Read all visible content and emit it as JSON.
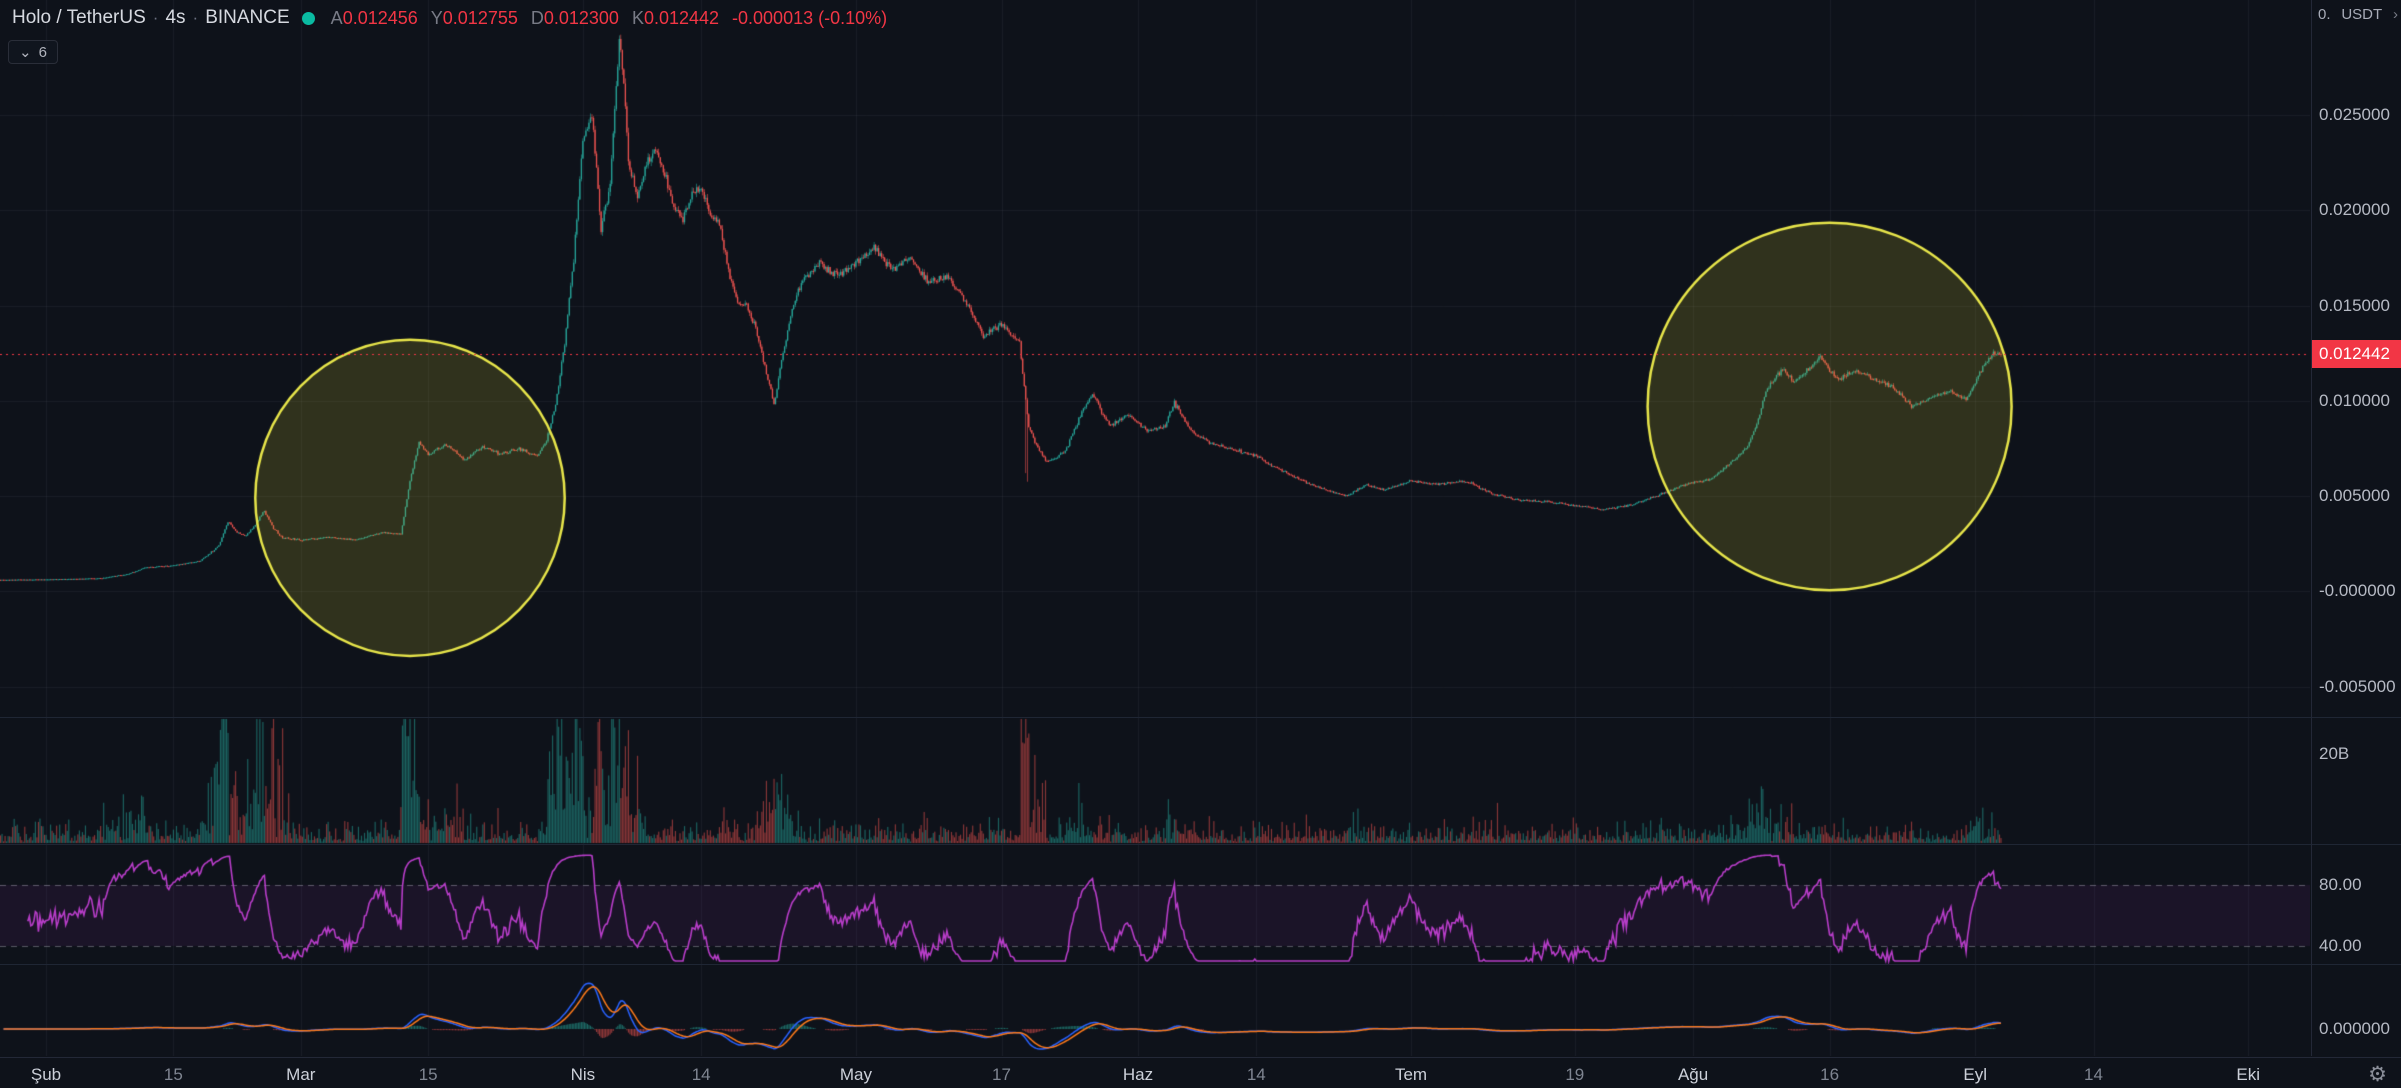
{
  "header": {
    "symbol": "Holo / TetherUS",
    "separator": "·",
    "interval": "4s",
    "exchange": "BINANCE",
    "ohlc": {
      "open_label": "A",
      "open": "0.012456",
      "high_label": "Y",
      "high": "0.012755",
      "low_label": "D",
      "low": "0.012300",
      "close_label": "K",
      "close": "0.012442",
      "change": "-0.000013 (-0.10%)"
    },
    "collapse_caret": "⌄",
    "collapse_count": "6"
  },
  "price_axis": {
    "top_fragment": "0.",
    "unit": "USDT",
    "unit_chevron": "›",
    "ticks": [
      "0.025000",
      "0.020000",
      "0.015000",
      "0.010000",
      "0.005000",
      "-0.000000",
      "-0.005000"
    ],
    "current_price": "0.012442"
  },
  "panes": {
    "volume_label": "20B",
    "rsi_upper_label": "80.00",
    "rsi_lower_label": "40.00",
    "macd_zero_label": "0.000000"
  },
  "time_axis": {
    "gear_icon": "⚙",
    "ticks": [
      {
        "label": "Şub",
        "day": 0,
        "major": true
      },
      {
        "label": "15",
        "day": 14,
        "major": false
      },
      {
        "label": "Mar",
        "day": 28,
        "major": true
      },
      {
        "label": "15",
        "day": 42,
        "major": false
      },
      {
        "label": "Nis",
        "day": 59,
        "major": true
      },
      {
        "label": "14",
        "day": 72,
        "major": false
      },
      {
        "label": "May",
        "day": 89,
        "major": true
      },
      {
        "label": "17",
        "day": 105,
        "major": false
      },
      {
        "label": "Haz",
        "day": 120,
        "major": true
      },
      {
        "label": "14",
        "day": 133,
        "major": false
      },
      {
        "label": "Tem",
        "day": 150,
        "major": true
      },
      {
        "label": "19",
        "day": 168,
        "major": false
      },
      {
        "label": "Ağu",
        "day": 181,
        "major": true
      },
      {
        "label": "16",
        "day": 196,
        "major": false
      },
      {
        "label": "Eyl",
        "day": 212,
        "major": true
      },
      {
        "label": "14",
        "day": 225,
        "major": false
      },
      {
        "label": "Eki",
        "day": 242,
        "major": true
      }
    ]
  },
  "chart_data": {
    "type": "candlestick",
    "title": "Holo / TetherUS · 4s · BINANCE",
    "x_unit": "days since Feb 1",
    "timeframe": "4h",
    "grid": true,
    "y_ticks": [
      0.025,
      0.02,
      0.015,
      0.01,
      0.005,
      0,
      -0.005
    ],
    "current_price": 0.012442,
    "last_candle": {
      "open": 0.012456,
      "high": 0.012755,
      "low": 0.0123,
      "close": 0.012442,
      "change": -1.3e-05,
      "change_pct": -0.1
    },
    "price_path": [
      [
        -5,
        0.0006
      ],
      [
        0,
        0.00062
      ],
      [
        6,
        0.00068
      ],
      [
        9,
        0.0009
      ],
      [
        11,
        0.00125
      ],
      [
        14,
        0.00135
      ],
      [
        17,
        0.0016
      ],
      [
        19,
        0.0024
      ],
      [
        20,
        0.0037
      ],
      [
        21,
        0.0031
      ],
      [
        22,
        0.0029
      ],
      [
        23,
        0.0035
      ],
      [
        24,
        0.0042
      ],
      [
        25,
        0.0033
      ],
      [
        26,
        0.0028
      ],
      [
        28,
        0.0027
      ],
      [
        31,
        0.00285
      ],
      [
        34,
        0.0027
      ],
      [
        37,
        0.0031
      ],
      [
        39,
        0.003
      ],
      [
        40,
        0.0058
      ],
      [
        41,
        0.0078
      ],
      [
        42,
        0.0072
      ],
      [
        44,
        0.0077
      ],
      [
        46,
        0.0069
      ],
      [
        48,
        0.0076
      ],
      [
        50,
        0.0072
      ],
      [
        52,
        0.0075
      ],
      [
        54,
        0.0071
      ],
      [
        55,
        0.0079
      ],
      [
        56,
        0.0098
      ],
      [
        57,
        0.013
      ],
      [
        58,
        0.0175
      ],
      [
        59,
        0.0238
      ],
      [
        60,
        0.025
      ],
      [
        61,
        0.019
      ],
      [
        62,
        0.0215
      ],
      [
        63,
        0.029
      ],
      [
        63.5,
        0.0268
      ],
      [
        64,
        0.0226
      ],
      [
        65,
        0.0206
      ],
      [
        66,
        0.0224
      ],
      [
        67,
        0.0232
      ],
      [
        68,
        0.0218
      ],
      [
        69,
        0.0202
      ],
      [
        70,
        0.0196
      ],
      [
        71,
        0.0208
      ],
      [
        72,
        0.0212
      ],
      [
        73,
        0.0198
      ],
      [
        74,
        0.0194
      ],
      [
        75,
        0.0168
      ],
      [
        76,
        0.0152
      ],
      [
        77,
        0.015
      ],
      [
        78,
        0.0138
      ],
      [
        79,
        0.0118
      ],
      [
        80,
        0.0098
      ],
      [
        81,
        0.0125
      ],
      [
        82,
        0.0148
      ],
      [
        83,
        0.0162
      ],
      [
        85,
        0.0172
      ],
      [
        87,
        0.0166
      ],
      [
        89,
        0.0172
      ],
      [
        91,
        0.0181
      ],
      [
        93,
        0.0169
      ],
      [
        95,
        0.0175
      ],
      [
        97,
        0.0162
      ],
      [
        99,
        0.0166
      ],
      [
        101,
        0.0153
      ],
      [
        103,
        0.0134
      ],
      [
        105,
        0.014
      ],
      [
        107,
        0.013
      ],
      [
        108,
        0.0086
      ],
      [
        109,
        0.0075
      ],
      [
        110,
        0.0068
      ],
      [
        112,
        0.0073
      ],
      [
        114,
        0.0096
      ],
      [
        115,
        0.0104
      ],
      [
        116,
        0.0094
      ],
      [
        117,
        0.0087
      ],
      [
        119,
        0.0093
      ],
      [
        121,
        0.0084
      ],
      [
        123,
        0.0087
      ],
      [
        124,
        0.0099
      ],
      [
        126,
        0.0083
      ],
      [
        128,
        0.0078
      ],
      [
        130,
        0.0075
      ],
      [
        133,
        0.0071
      ],
      [
        136,
        0.0063
      ],
      [
        139,
        0.0056
      ],
      [
        141,
        0.0053
      ],
      [
        143,
        0.005
      ],
      [
        145,
        0.0056
      ],
      [
        147,
        0.0053
      ],
      [
        150,
        0.0058
      ],
      [
        153,
        0.0056
      ],
      [
        156,
        0.0058
      ],
      [
        159,
        0.0051
      ],
      [
        162,
        0.0048
      ],
      [
        165,
        0.0047
      ],
      [
        168,
        0.0045
      ],
      [
        171,
        0.0043
      ],
      [
        174,
        0.0045
      ],
      [
        177,
        0.005
      ],
      [
        180,
        0.0056
      ],
      [
        183,
        0.0059
      ],
      [
        185,
        0.0067
      ],
      [
        187,
        0.0076
      ],
      [
        188,
        0.0088
      ],
      [
        189,
        0.0105
      ],
      [
        190,
        0.0112
      ],
      [
        191,
        0.0117
      ],
      [
        192,
        0.011
      ],
      [
        193,
        0.0113
      ],
      [
        195,
        0.0124
      ],
      [
        196,
        0.0116
      ],
      [
        197,
        0.0111
      ],
      [
        199,
        0.0116
      ],
      [
        201,
        0.0111
      ],
      [
        203,
        0.0107
      ],
      [
        205,
        0.0097
      ],
      [
        207,
        0.0101
      ],
      [
        209,
        0.0105
      ],
      [
        211,
        0.0101
      ],
      [
        212,
        0.0109
      ],
      [
        213,
        0.0119
      ],
      [
        214,
        0.0125
      ],
      [
        215,
        0.012442
      ]
    ],
    "annotations": [
      {
        "shape": "ellipse",
        "cx_day": 40,
        "cy_price": 0.0049,
        "rx_day": 17,
        "ry_price": 0.0083,
        "stroke": "#e7e54a",
        "fill": "rgba(187,181,44,0.20)"
      },
      {
        "shape": "ellipse",
        "cx_day": 196,
        "cy_price": 0.0097,
        "rx_day": 20,
        "ry_price": 0.00965,
        "stroke": "#e7e54a",
        "fill": "rgba(187,181,44,0.20)"
      }
    ],
    "indicators": {
      "volume": {
        "scale_label": "20B",
        "up_color": "#26a69a",
        "down_color": "#ef5350"
      },
      "rsi": {
        "upper_band": 80,
        "lower_band": 40,
        "color": "#b83dc9"
      },
      "macd": {
        "zero": 0,
        "macd_color": "#2962ff",
        "signal_color": "#ff7a1a"
      }
    },
    "colors": {
      "up": "#26a69a",
      "down": "#ef5350",
      "price_line": "#f23645",
      "accent_tag": "#f23645"
    }
  }
}
